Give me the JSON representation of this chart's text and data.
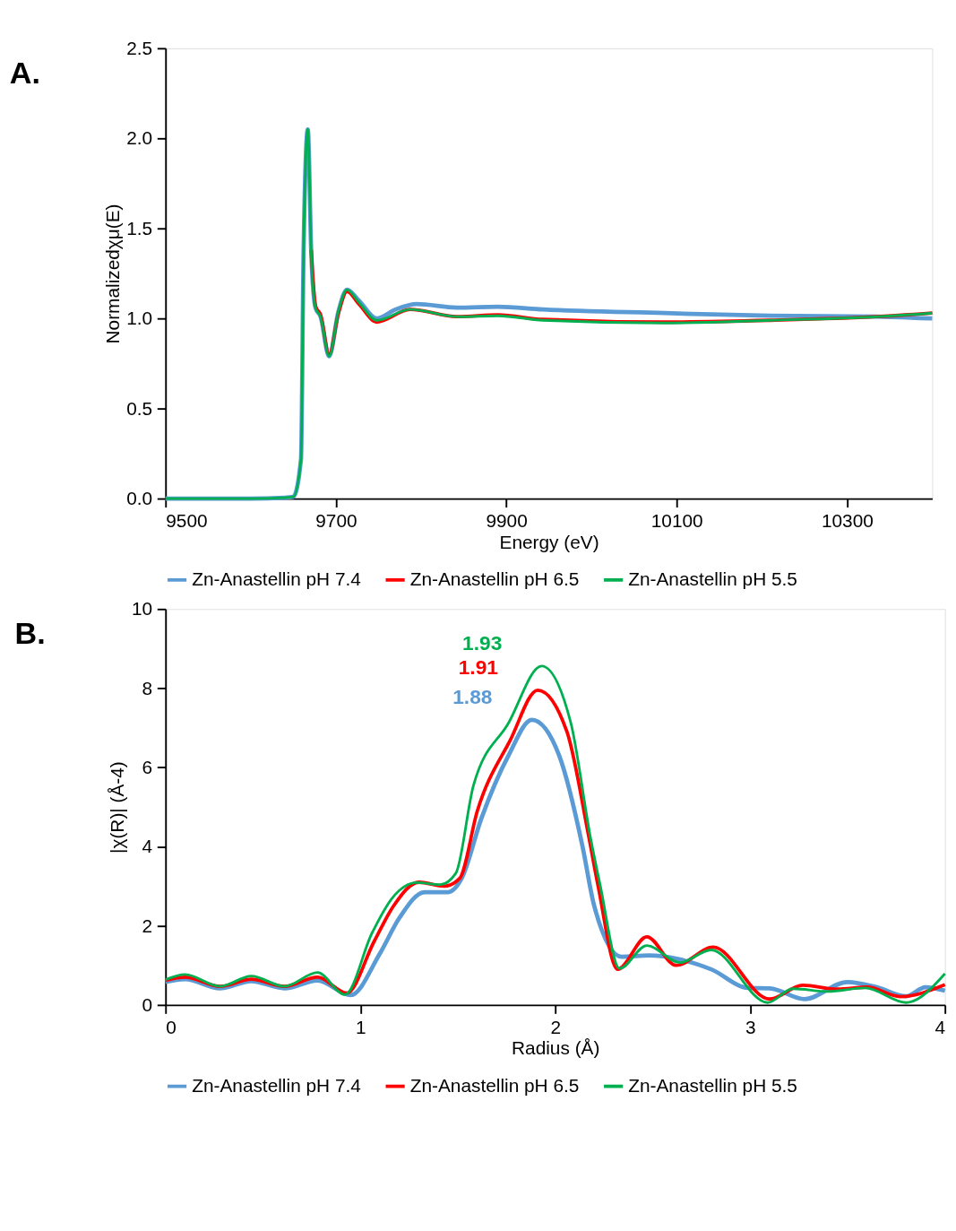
{
  "chart_data": [
    {
      "type": "line",
      "title": "A.",
      "xlabel": "Energy (eV)",
      "ylabel": "Normalizedχμ(E)",
      "xlim": [
        9500,
        10400
      ],
      "xticks": [
        {
          "value": 9500,
          "label": "9500"
        },
        {
          "value": 9700,
          "label": "9700"
        },
        {
          "value": 9900,
          "label": "9900"
        },
        {
          "value": 10100,
          "label": "10100"
        },
        {
          "value": 10300,
          "label": "10300"
        }
      ],
      "ylim": [
        0,
        2.5
      ],
      "yticks": [
        {
          "value": 0,
          "label": "0.0"
        },
        {
          "value": 0.5,
          "label": "0.5"
        },
        {
          "value": 1,
          "label": "1.0"
        },
        {
          "value": 1.5,
          "label": "1.5"
        },
        {
          "value": 2,
          "label": "2.0"
        },
        {
          "value": 2.5,
          "label": "2.5"
        }
      ],
      "grid": false,
      "legend": "bottom",
      "marker": "none",
      "line_style": "solid",
      "series": [
        {
          "name": "Zn-Anastellin pH 7.4",
          "color": "#5b9bd5",
          "x": [
            9500,
            9600,
            9640,
            9650,
            9659,
            9662,
            9667,
            9671,
            9676,
            9682,
            9692,
            9703,
            9713,
            9727,
            9748,
            9770,
            9795,
            9843,
            9890,
            9943,
            10086,
            10210,
            10335,
            10400
          ],
          "values": [
            0,
            0,
            0.005,
            0.01,
            0.22,
            1.37,
            2.05,
            1.37,
            1.06,
            1.01,
            0.79,
            1.04,
            1.16,
            1.1,
            1.0,
            1.05,
            1.08,
            1.06,
            1.065,
            1.05,
            1.03,
            1.015,
            1.01,
            1.0
          ]
        },
        {
          "name": "Zn-Anastellin pH 6.5",
          "color": "#ff0000",
          "x": [
            9671,
            9676,
            9682,
            9692,
            9703,
            9713,
            9727,
            9748,
            9787,
            9843,
            9890,
            9943,
            10086,
            10210,
            10335,
            10400
          ],
          "values": [
            1.38,
            1.07,
            1.02,
            0.8,
            1.03,
            1.15,
            1.08,
            0.98,
            1.05,
            1.01,
            1.02,
            0.995,
            0.98,
            0.99,
            1.01,
            1.03
          ]
        },
        {
          "name": "Zn-Anastellin pH 5.5",
          "color": "#00b050",
          "x": [
            9500,
            9600,
            9640,
            9650,
            9659,
            9662,
            9667,
            9671,
            9676,
            9682,
            9692,
            9703,
            9713,
            9727,
            9748,
            9787,
            9843,
            9890,
            9943,
            10086,
            10210,
            10335,
            10400
          ],
          "values": [
            0,
            0,
            0.005,
            0.01,
            0.22,
            1.37,
            2.05,
            1.37,
            1.06,
            1.01,
            0.79,
            1.04,
            1.16,
            1.09,
            0.99,
            1.05,
            1.01,
            1.015,
            0.99,
            0.975,
            0.99,
            1.01,
            1.03
          ]
        }
      ]
    },
    {
      "type": "line",
      "title": "B.",
      "xlabel": "Radius (Å)",
      "ylabel": "|χ(R)| (Å-4)",
      "xlim": [
        0,
        4
      ],
      "xticks": [
        {
          "value": 0,
          "label": "0"
        },
        {
          "value": 1,
          "label": "1"
        },
        {
          "value": 2,
          "label": "2"
        },
        {
          "value": 3,
          "label": "3"
        },
        {
          "value": 4,
          "label": "4"
        }
      ],
      "ylim": [
        0,
        10
      ],
      "yticks": [
        0,
        2,
        4,
        6,
        8,
        10
      ],
      "grid": false,
      "legend": "bottom",
      "marker": "none",
      "line_style": "solid",
      "annotations": [
        "1.88",
        "1.91",
        "1.93"
      ],
      "series": [
        {
          "name": "Zn-Anastellin pH 7.4",
          "color": "#5b9bd5",
          "x": [
            0,
            0.1,
            0.28,
            0.44,
            0.61,
            0.78,
            0.95,
            1.1,
            1.2,
            1.33,
            1.45,
            1.52,
            1.62,
            1.76,
            1.88,
            2.02,
            2.14,
            2.2,
            2.34,
            2.48,
            2.64,
            2.8,
            2.99,
            3.1,
            3.28,
            3.5,
            3.65,
            3.8,
            3.9,
            4.0
          ],
          "values": [
            0.58,
            0.65,
            0.42,
            0.6,
            0.42,
            0.62,
            0.25,
            1.3,
            2.2,
            2.85,
            2.85,
            3.2,
            4.7,
            6.3,
            7.2,
            6.3,
            4.0,
            2.5,
            1.22,
            1.25,
            1.15,
            0.9,
            0.43,
            0.42,
            0.15,
            0.58,
            0.45,
            0.22,
            0.45,
            0.36
          ]
        },
        {
          "name": "Zn-Anastellin pH 6.5",
          "color": "#ff0000",
          "x": [
            0,
            0.1,
            0.28,
            0.44,
            0.61,
            0.78,
            0.93,
            1.07,
            1.17,
            1.3,
            1.43,
            1.51,
            1.6,
            1.77,
            1.91,
            2.06,
            2.17,
            2.22,
            2.32,
            2.47,
            2.62,
            2.81,
            3.1,
            3.27,
            3.45,
            3.6,
            3.77,
            4.0
          ],
          "values": [
            0.62,
            0.7,
            0.47,
            0.65,
            0.47,
            0.7,
            0.3,
            1.6,
            2.5,
            3.1,
            3.0,
            3.2,
            4.9,
            6.7,
            7.95,
            6.9,
            4.3,
            3.0,
            0.9,
            1.72,
            1.0,
            1.46,
            0.15,
            0.5,
            0.4,
            0.45,
            0.21,
            0.51
          ]
        },
        {
          "name": "Zn-Anastellin pH 5.5",
          "color": "#00b050",
          "x": [
            0,
            0.1,
            0.28,
            0.44,
            0.61,
            0.78,
            0.92,
            1.06,
            1.16,
            1.29,
            1.41,
            1.49,
            1.58,
            1.76,
            1.93,
            2.08,
            2.18,
            2.23,
            2.33,
            2.47,
            2.64,
            2.8,
            3.09,
            3.22,
            3.4,
            3.59,
            3.8,
            4.0
          ],
          "values": [
            0.64,
            0.77,
            0.47,
            0.73,
            0.47,
            0.82,
            0.26,
            1.82,
            2.68,
            3.09,
            3.04,
            3.33,
            5.54,
            7.12,
            8.56,
            7.12,
            4.25,
            3.04,
            0.92,
            1.5,
            1.07,
            1.39,
            0.06,
            0.41,
            0.34,
            0.43,
            0.06,
            0.79
          ]
        }
      ]
    }
  ]
}
